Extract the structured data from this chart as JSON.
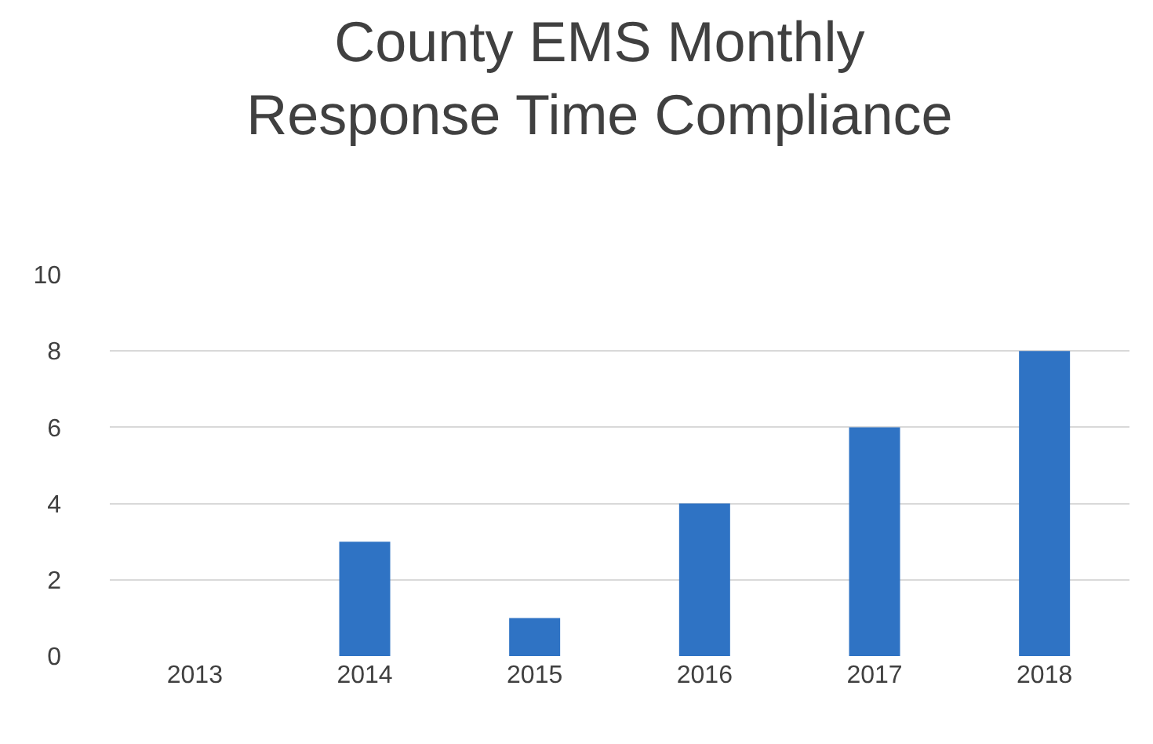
{
  "chart_data": {
    "type": "bar",
    "title": "County EMS Monthly\nResponse Time Compliance",
    "categories": [
      "2013",
      "2014",
      "2015",
      "2016",
      "2017",
      "2018"
    ],
    "values": [
      0,
      3,
      1,
      4,
      6,
      8
    ],
    "color": "#2f73c4",
    "ylim": [
      0,
      10
    ],
    "yticks": [
      0,
      2,
      4,
      6,
      8,
      10
    ],
    "grid": "y",
    "legend": false
  }
}
